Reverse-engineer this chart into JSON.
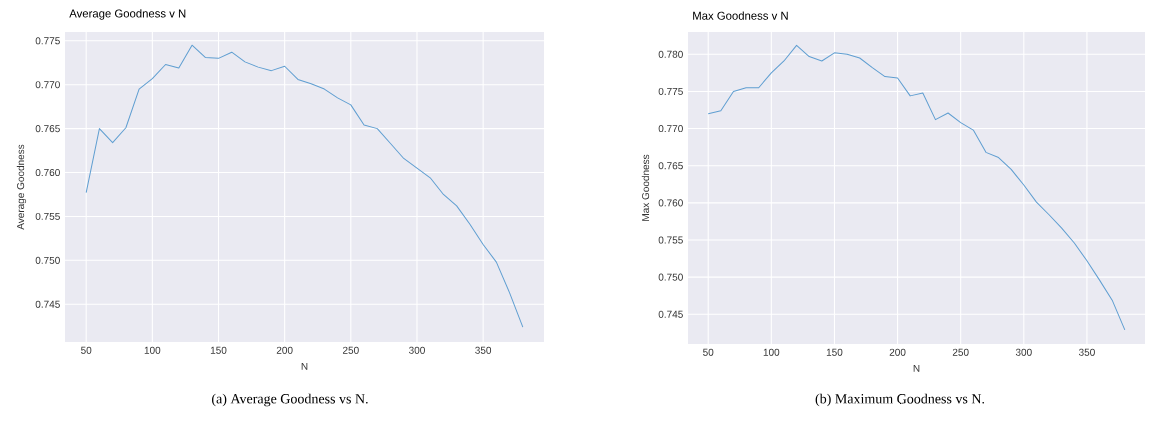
{
  "chart_data": [
    {
      "type": "line",
      "title": "Average Goodness v N",
      "xlabel": "N",
      "ylabel": "Average Goodness",
      "annotations": [
        "(a) Average Goodness vs N."
      ],
      "grid": true,
      "xlim": [
        34,
        396
      ],
      "ylim": [
        0.7407,
        0.776
      ],
      "xticks": [
        50,
        100,
        150,
        200,
        250,
        300,
        350
      ],
      "yticks": [
        0.745,
        {
          "value": 0.75,
          "label": "0.750"
        },
        0.755,
        {
          "value": 0.76,
          "label": "0.760"
        },
        0.765,
        {
          "value": 0.77,
          "label": "0.770"
        },
        0.775
      ],
      "x": [
        50,
        60,
        70,
        80,
        90,
        100,
        110,
        120,
        130,
        140,
        150,
        160,
        170,
        180,
        190,
        200,
        210,
        220,
        230,
        240,
        250,
        260,
        270,
        280,
        290,
        300,
        310,
        320,
        330,
        340,
        350,
        360,
        370,
        380
      ],
      "series": [
        {
          "color": "#5f9ed1",
          "values": [
            0.7577,
            0.765,
            0.7634,
            0.7651,
            0.7695,
            0.7707,
            0.7723,
            0.7719,
            0.7745,
            0.7731,
            0.773,
            0.7737,
            0.7726,
            0.772,
            0.7716,
            0.7721,
            0.7706,
            0.7701,
            0.7695,
            0.7685,
            0.7677,
            0.7654,
            0.765,
            0.7633,
            0.7616,
            0.7605,
            0.7594,
            0.7575,
            0.7562,
            0.7541,
            0.7518,
            0.7498,
            0.7463,
            0.7424
          ]
        }
      ]
    },
    {
      "type": "line",
      "title": "Max Goodness v N",
      "xlabel": "N",
      "ylabel": "Max Goodness",
      "annotations": [
        "(b) Maximum Goodness vs N."
      ],
      "grid": true,
      "xlim": [
        34,
        396
      ],
      "ylim": [
        0.741,
        0.783
      ],
      "xticks": [
        50,
        100,
        150,
        200,
        250,
        300,
        350
      ],
      "yticks": [
        0.745,
        {
          "value": 0.75,
          "label": "0.750"
        },
        0.755,
        {
          "value": 0.76,
          "label": "0.760"
        },
        0.765,
        {
          "value": 0.77,
          "label": "0.770"
        },
        0.775,
        {
          "value": 0.78,
          "label": "0.780"
        }
      ],
      "x": [
        50,
        60,
        70,
        80,
        90,
        100,
        110,
        120,
        130,
        140,
        150,
        160,
        170,
        180,
        190,
        200,
        210,
        220,
        230,
        240,
        250,
        260,
        270,
        280,
        290,
        300,
        310,
        320,
        330,
        340,
        350,
        360,
        370,
        380
      ],
      "series": [
        {
          "color": "#5f9ed1",
          "values": [
            0.772,
            0.7724,
            0.775,
            0.7755,
            0.7755,
            0.7775,
            0.7791,
            0.7812,
            0.7797,
            0.7791,
            0.7802,
            0.78,
            0.7795,
            0.7782,
            0.777,
            0.7768,
            0.7744,
            0.7748,
            0.7712,
            0.7721,
            0.7708,
            0.7698,
            0.7668,
            0.7661,
            0.7645,
            0.7624,
            0.7601,
            0.7584,
            0.7566,
            0.7546,
            0.7522,
            0.7496,
            0.7469,
            0.7429
          ]
        }
      ]
    }
  ]
}
